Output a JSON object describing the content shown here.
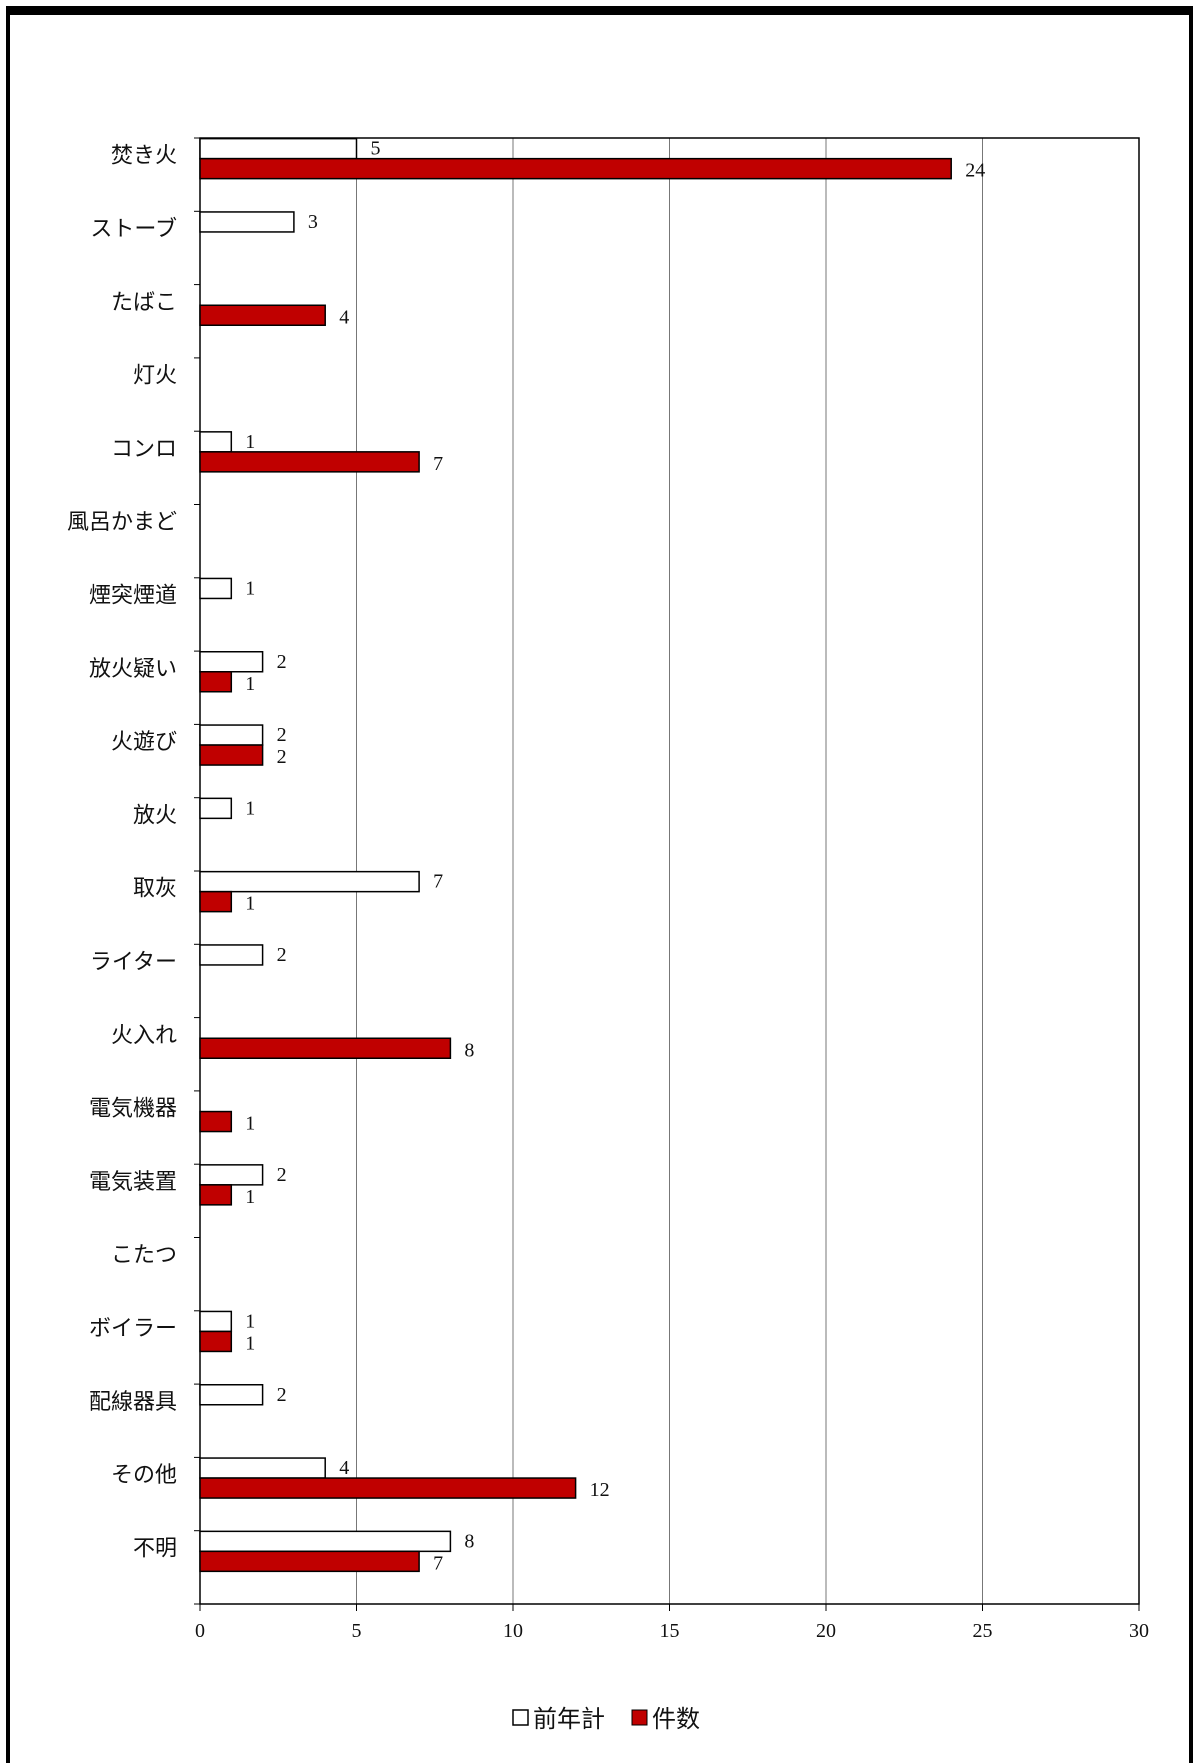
{
  "chart_data": {
    "type": "bar",
    "orientation": "horizontal",
    "categories": [
      "焚き火",
      "ストーブ",
      "たばこ",
      "灯火",
      "コンロ",
      "風呂かまど",
      "煙突煙道",
      "放火疑い",
      "火遊び",
      "放火",
      "取灰",
      "ライター",
      "火入れ",
      "電気機器",
      "電気装置",
      "こたつ",
      "ボイラー",
      "配線器具",
      "その他",
      "不明"
    ],
    "series": [
      {
        "name": "前年計",
        "color": "#ffffff",
        "stroke": "#000000",
        "values": [
          5,
          3,
          null,
          null,
          1,
          null,
          1,
          2,
          2,
          1,
          7,
          2,
          null,
          null,
          2,
          null,
          1,
          2,
          4,
          8
        ]
      },
      {
        "name": "件数",
        "color": "#c00000",
        "stroke": "#000000",
        "values": [
          24,
          null,
          4,
          null,
          7,
          null,
          null,
          1,
          2,
          null,
          1,
          null,
          8,
          1,
          1,
          null,
          1,
          null,
          12,
          7
        ]
      }
    ],
    "xlim": [
      0,
      30
    ],
    "xticks": [
      0,
      5,
      10,
      15,
      20,
      25,
      30
    ],
    "grid": true,
    "legend_position": "bottom-center"
  }
}
